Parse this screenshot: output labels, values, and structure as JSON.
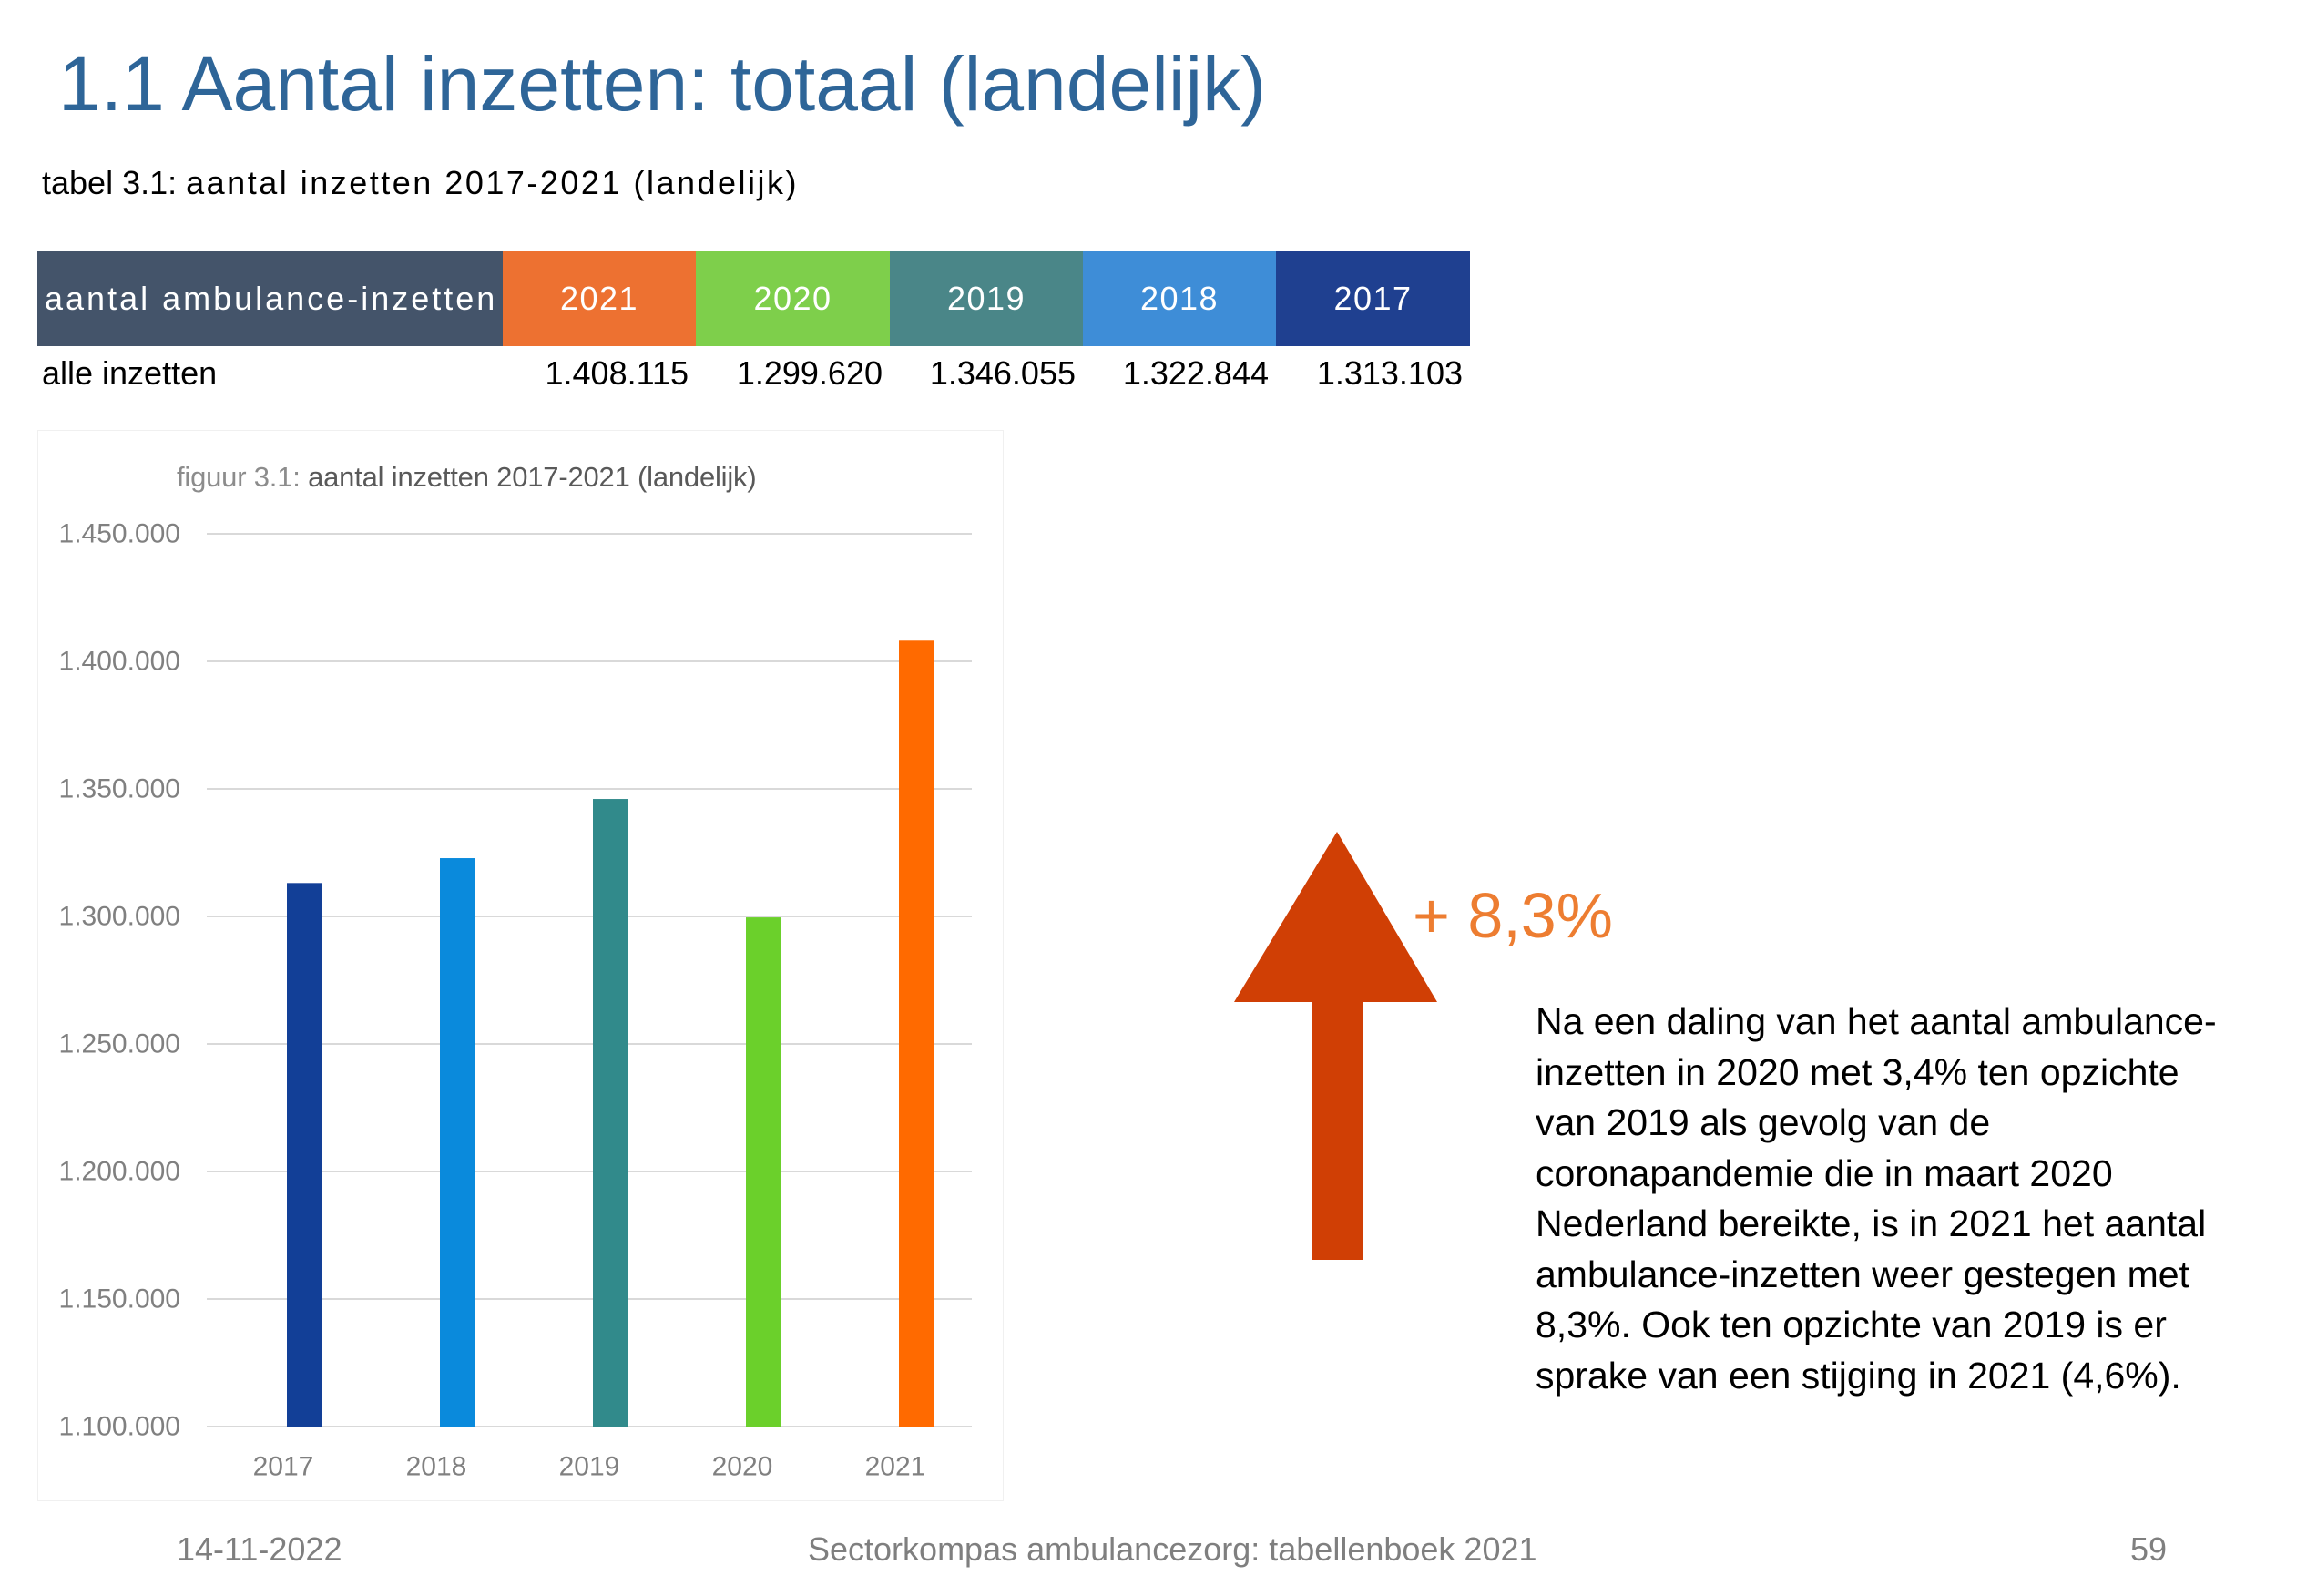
{
  "slide": {
    "title": "1.1 Aantal inzetten: totaal (landelijk)",
    "title_color": "#2E6598",
    "caption_prefix": "tabel 3.1:",
    "caption": "aantal inzetten 2017-2021 (landelijk)"
  },
  "table": {
    "header_label": "aantal ambulance-inzetten",
    "header_color": "#44546A",
    "columns": [
      {
        "year": "2021",
        "color": "#ED7131"
      },
      {
        "year": "2020",
        "color": "#7ECF4B"
      },
      {
        "year": "2019",
        "color": "#4A8688"
      },
      {
        "year": "2018",
        "color": "#3E8DD7"
      },
      {
        "year": "2017",
        "color": "#1F4090"
      }
    ],
    "rows": [
      {
        "label": "alle inzetten",
        "values": [
          "1.408.115",
          "1.299.620",
          "1.346.055",
          "1.322.844",
          "1.313.103"
        ]
      }
    ]
  },
  "chart_data": {
    "type": "bar",
    "title_prefix": "figuur 3.1:",
    "title": "aantal inzetten 2017-2021 (landelijk)",
    "xlabel": "",
    "ylabel": "",
    "categories": [
      "2017",
      "2018",
      "2019",
      "2020",
      "2021"
    ],
    "values": [
      1313103,
      1322844,
      1346055,
      1299620,
      1408115
    ],
    "colors": [
      "#123F97",
      "#0A8ADC",
      "#318A8B",
      "#6BD02B",
      "#FF6A00"
    ],
    "ylim": [
      1100000,
      1450000
    ],
    "yticks": [
      1100000,
      1150000,
      1200000,
      1250000,
      1300000,
      1350000,
      1400000,
      1450000
    ],
    "ytick_labels": [
      "1.100.000",
      "1.150.000",
      "1.200.000",
      "1.250.000",
      "1.300.000",
      "1.350.000",
      "1.400.000",
      "1.450.000"
    ],
    "grid": true,
    "legend": "none"
  },
  "callout": {
    "arrow_icon": "arrow-up-icon",
    "arrow_color": "#D03F05",
    "change_label": "+ 8,3%",
    "change_color": "#ED7D31"
  },
  "paragraph": {
    "lines": [
      "Na een daling van het aantal ambulance-",
      "inzetten in 2020 met 3,4% ten opzichte",
      "van 2019 als gevolg van de",
      "coronapandemie die in maart 2020",
      "Nederland bereikte, is in 2021 het aantal",
      "ambulance-inzetten weer gestegen met",
      "8,3%. Ook ten opzichte van 2019 is er",
      "sprake van een stijging in 2021 (4,6%)."
    ]
  },
  "footer": {
    "date": "14-11-2022",
    "center": "Sectorkompas ambulancezorg: tabellenboek 2021",
    "page": "59"
  }
}
